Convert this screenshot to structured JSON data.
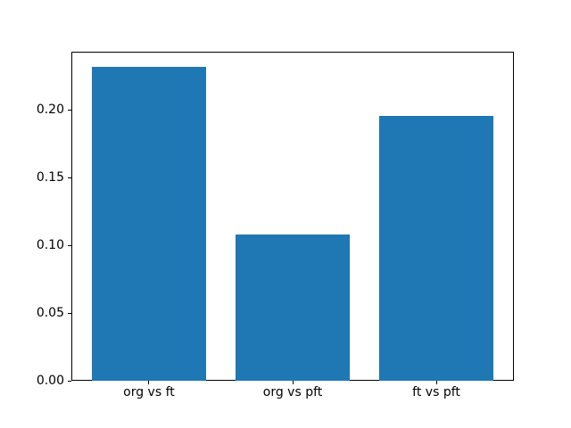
{
  "figure": {
    "background": "#ffffff"
  },
  "chart_data": {
    "type": "bar",
    "categories": [
      "org vs ft",
      "org vs pft",
      "ft vs pft"
    ],
    "values": [
      0.232,
      0.108,
      0.196
    ],
    "title": "",
    "xlabel": "",
    "ylabel": "",
    "ylim": [
      0,
      0.2436
    ],
    "xlim": [
      -0.54,
      2.54
    ],
    "bar_width": 0.8,
    "bar_color": "#1f77b4",
    "yticks": [
      "0.00",
      "0.05",
      "0.10",
      "0.15",
      "0.20"
    ],
    "ytick_values": [
      0,
      0.05,
      0.1,
      0.15,
      0.2
    ],
    "grid": false,
    "legend": false
  }
}
